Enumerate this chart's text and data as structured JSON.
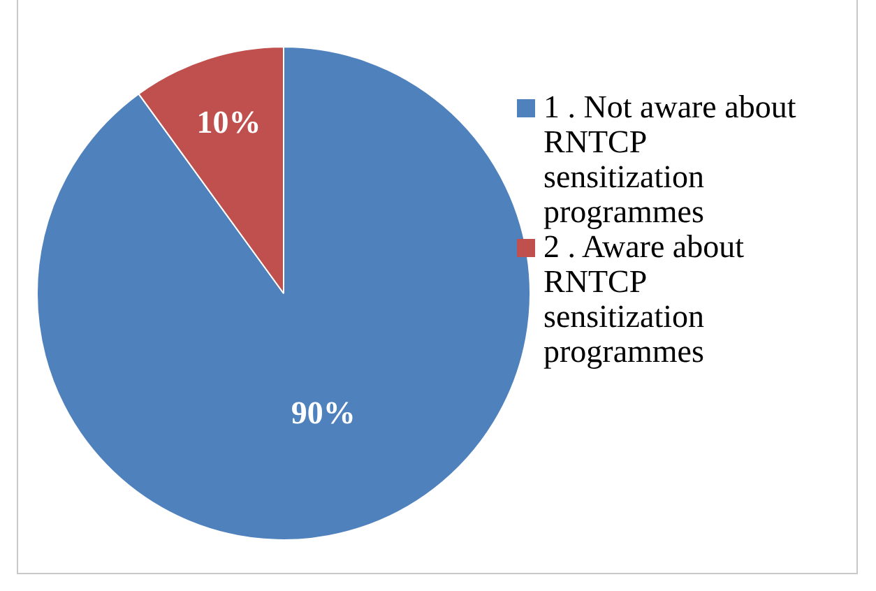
{
  "chart_data": {
    "type": "pie",
    "categories": [
      "1 . Not aware about RNTCP sensitization programmes",
      "2 . Aware about RNTCP sensitization programmes"
    ],
    "values": [
      90,
      10
    ],
    "value_labels": [
      "90%",
      "10%"
    ],
    "colors": [
      "#4f81bd",
      "#c0504d"
    ],
    "legend": "right"
  }
}
